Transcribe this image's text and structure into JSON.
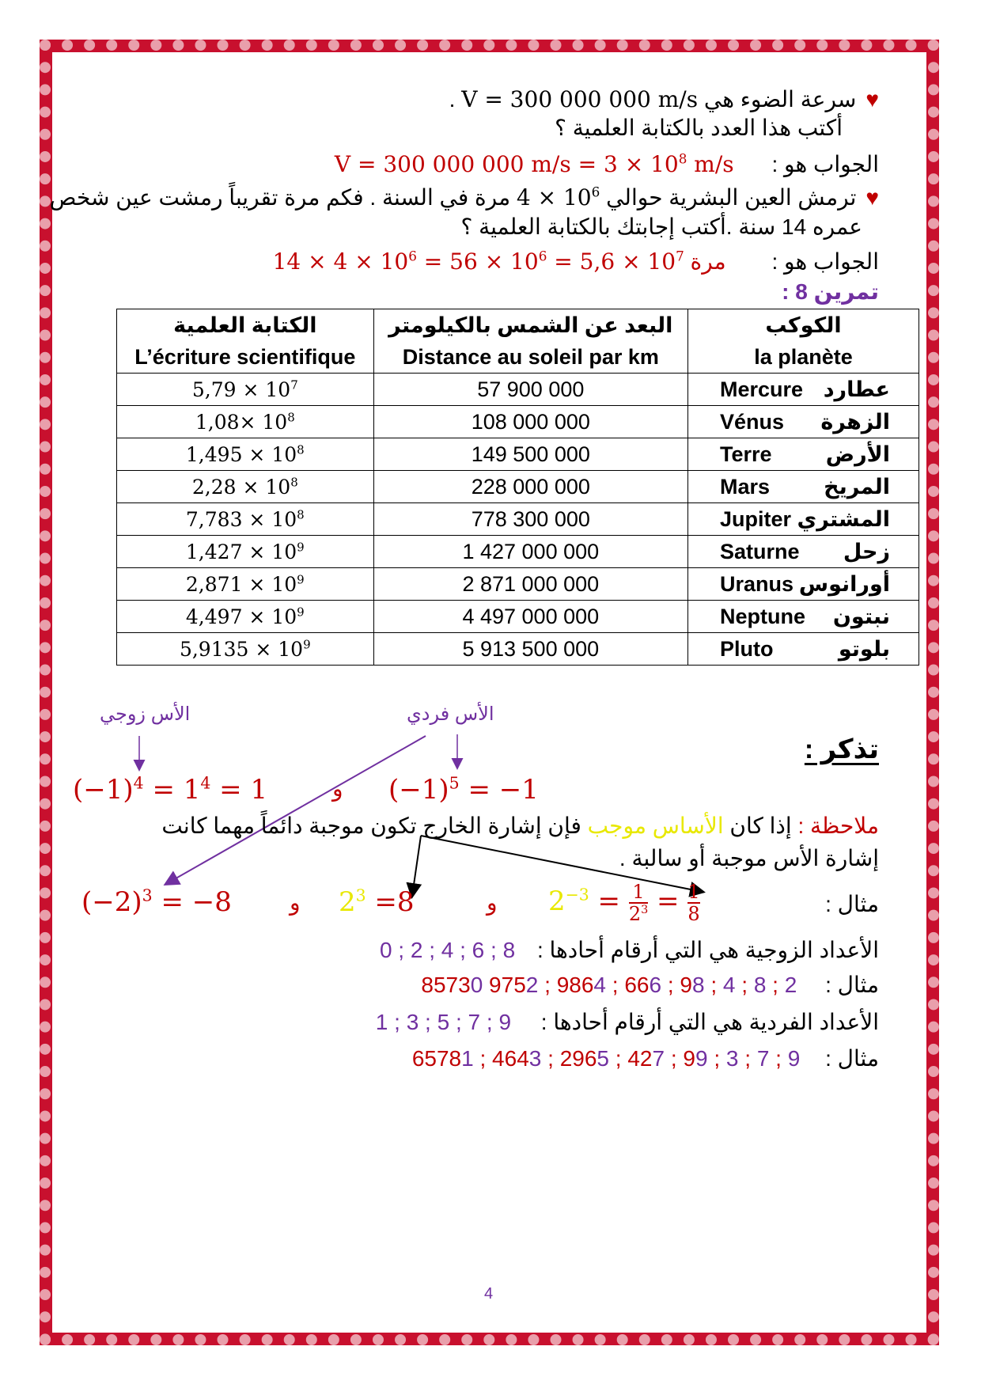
{
  "colors": {
    "border": "#C8102E",
    "answer": "#C00000",
    "accent": "#7030A0",
    "highlight": "#FFFF00"
  },
  "q1": {
    "icon": "heart-icon",
    "text": "سرعة الضوء هي",
    "formula": "V = 300 000 000 m/s",
    "end": ".",
    "line2": "أكتب هذا العدد بالكتابة العلمية ؟"
  },
  "a1": {
    "label": "الجواب هو :",
    "formula_a": "V = 300 000 000 m/s = 3 × 10",
    "exp": "8",
    "formula_b": " m/s"
  },
  "q2": {
    "icon": "heart-icon",
    "text_a": "ترمش العين البشرية حوالي",
    "base": "4 × 10",
    "exp": "6",
    "text_b": "مرة في السنة . فكم مرة تقريباً رمشت عين شخص",
    "line2": "عمره 14 سنة .أكتب إجابتك بالكتابة العلمية ؟"
  },
  "a2": {
    "label": "الجواب هو :",
    "unit": "مرة",
    "f1": "14 × 4 × 10",
    "e1": "6",
    "f2": " = 56 × 10",
    "e2": "6",
    "f3": " = 5,6 × 10",
    "e3": "7"
  },
  "exercise": "تمرين 8 :",
  "table": {
    "headers": [
      {
        "ar": "الكتابة العلمية",
        "fr": "L’écriture scientifique"
      },
      {
        "ar": "البعد عن الشمس بالكيلومتر",
        "fr": "Distance au soleil par km"
      },
      {
        "ar": "الكوكب",
        "fr": "la planète"
      }
    ],
    "rows": [
      {
        "sci": "5,79 × 10",
        "exp": "7",
        "dist": "57 900 000",
        "fr": "Mercure",
        "ar": "عطارد"
      },
      {
        "sci": "1,08× 10",
        "exp": "8",
        "dist": "108 000 000",
        "fr": "Vénus",
        "ar": "الزهرة"
      },
      {
        "sci": "1,495 × 10",
        "exp": "8",
        "dist": "149 500 000",
        "fr": "Terre",
        "ar": "الأرض"
      },
      {
        "sci": "2,28 × 10",
        "exp": "8",
        "dist": "228 000 000",
        "fr": "Mars",
        "ar": "المريخ"
      },
      {
        "sci": "7,783 × 10",
        "exp": "8",
        "dist": "778 300 000",
        "fr": "Jupiter",
        "ar": "المشتري"
      },
      {
        "sci": "1,427 × 10",
        "exp": "9",
        "dist": "1 427 000 000",
        "fr": "Saturne",
        "ar": "زحل"
      },
      {
        "sci": "2,871 × 10",
        "exp": "9",
        "dist": "2 871 000 000",
        "fr": "Uranus",
        "ar": "أورانوس"
      },
      {
        "sci": "4,497 × 10",
        "exp": "9",
        "dist": "4 497 000 000",
        "fr": "Neptune",
        "ar": "نبتون"
      },
      {
        "sci": "5,9135 × 10",
        "exp": "9",
        "dist": "5 913 500 000",
        "fr": "Pluto",
        "ar": "بلوتو"
      }
    ]
  },
  "remember": {
    "title": "تذكر :",
    "label_even": "الأس زوجي",
    "label_odd": "الأس فردي",
    "eq_even": {
      "a": "(−1)",
      "e1": "4",
      "b": " = 1",
      "e2": "4",
      "c": " = 1"
    },
    "and": "و",
    "eq_odd": {
      "a": "(−1)",
      "e1": "5",
      "b": " = −1"
    },
    "note_label": "ملاحظة :",
    "note_a": "إذا كان",
    "note_hl": "الأساس موجب",
    "note_b": "فإن إشارة الخارج تكون موجبة دائماً مهما كانت",
    "note_line2": "إشارة الأس موجبة أو سالبة .",
    "example_label": "مثال :",
    "ex1": {
      "a": "(−2)",
      "e": "3",
      "b": " = −8"
    },
    "ex2": {
      "a": "2",
      "e": "3",
      "b": " =8"
    },
    "ex3": {
      "a": "2",
      "e": "−3",
      "eq": " = ",
      "num": "1",
      "den": "2",
      "den_e": "3",
      "num2": "1",
      "den2": "8"
    },
    "even_def": "الأعداد الزوجية هي التي أرقام أحادها :",
    "even_digits": "0 ; 2 ; 4 ; 6 ; 8",
    "even_example": [
      [
        "8573",
        "0"
      ],
      [
        "975",
        "2"
      ],
      [
        "986",
        "4"
      ],
      [
        "66",
        "6"
      ],
      [
        "9",
        "8"
      ],
      [
        "",
        "4"
      ],
      [
        "",
        "8"
      ],
      [
        "",
        "2"
      ]
    ],
    "odd_def": "الأعداد الفردية هي التي أرقام أحادها :",
    "odd_digits": "1 ; 3 ; 5 ; 7 ; 9",
    "odd_example": [
      [
        "6578",
        "1"
      ],
      [
        "464",
        "3"
      ],
      [
        "296",
        "5"
      ],
      [
        "42",
        "7"
      ],
      [
        "9",
        "9"
      ],
      [
        "",
        "3"
      ],
      [
        "",
        "7"
      ],
      [
        "",
        "9"
      ]
    ]
  },
  "page_number": "4"
}
